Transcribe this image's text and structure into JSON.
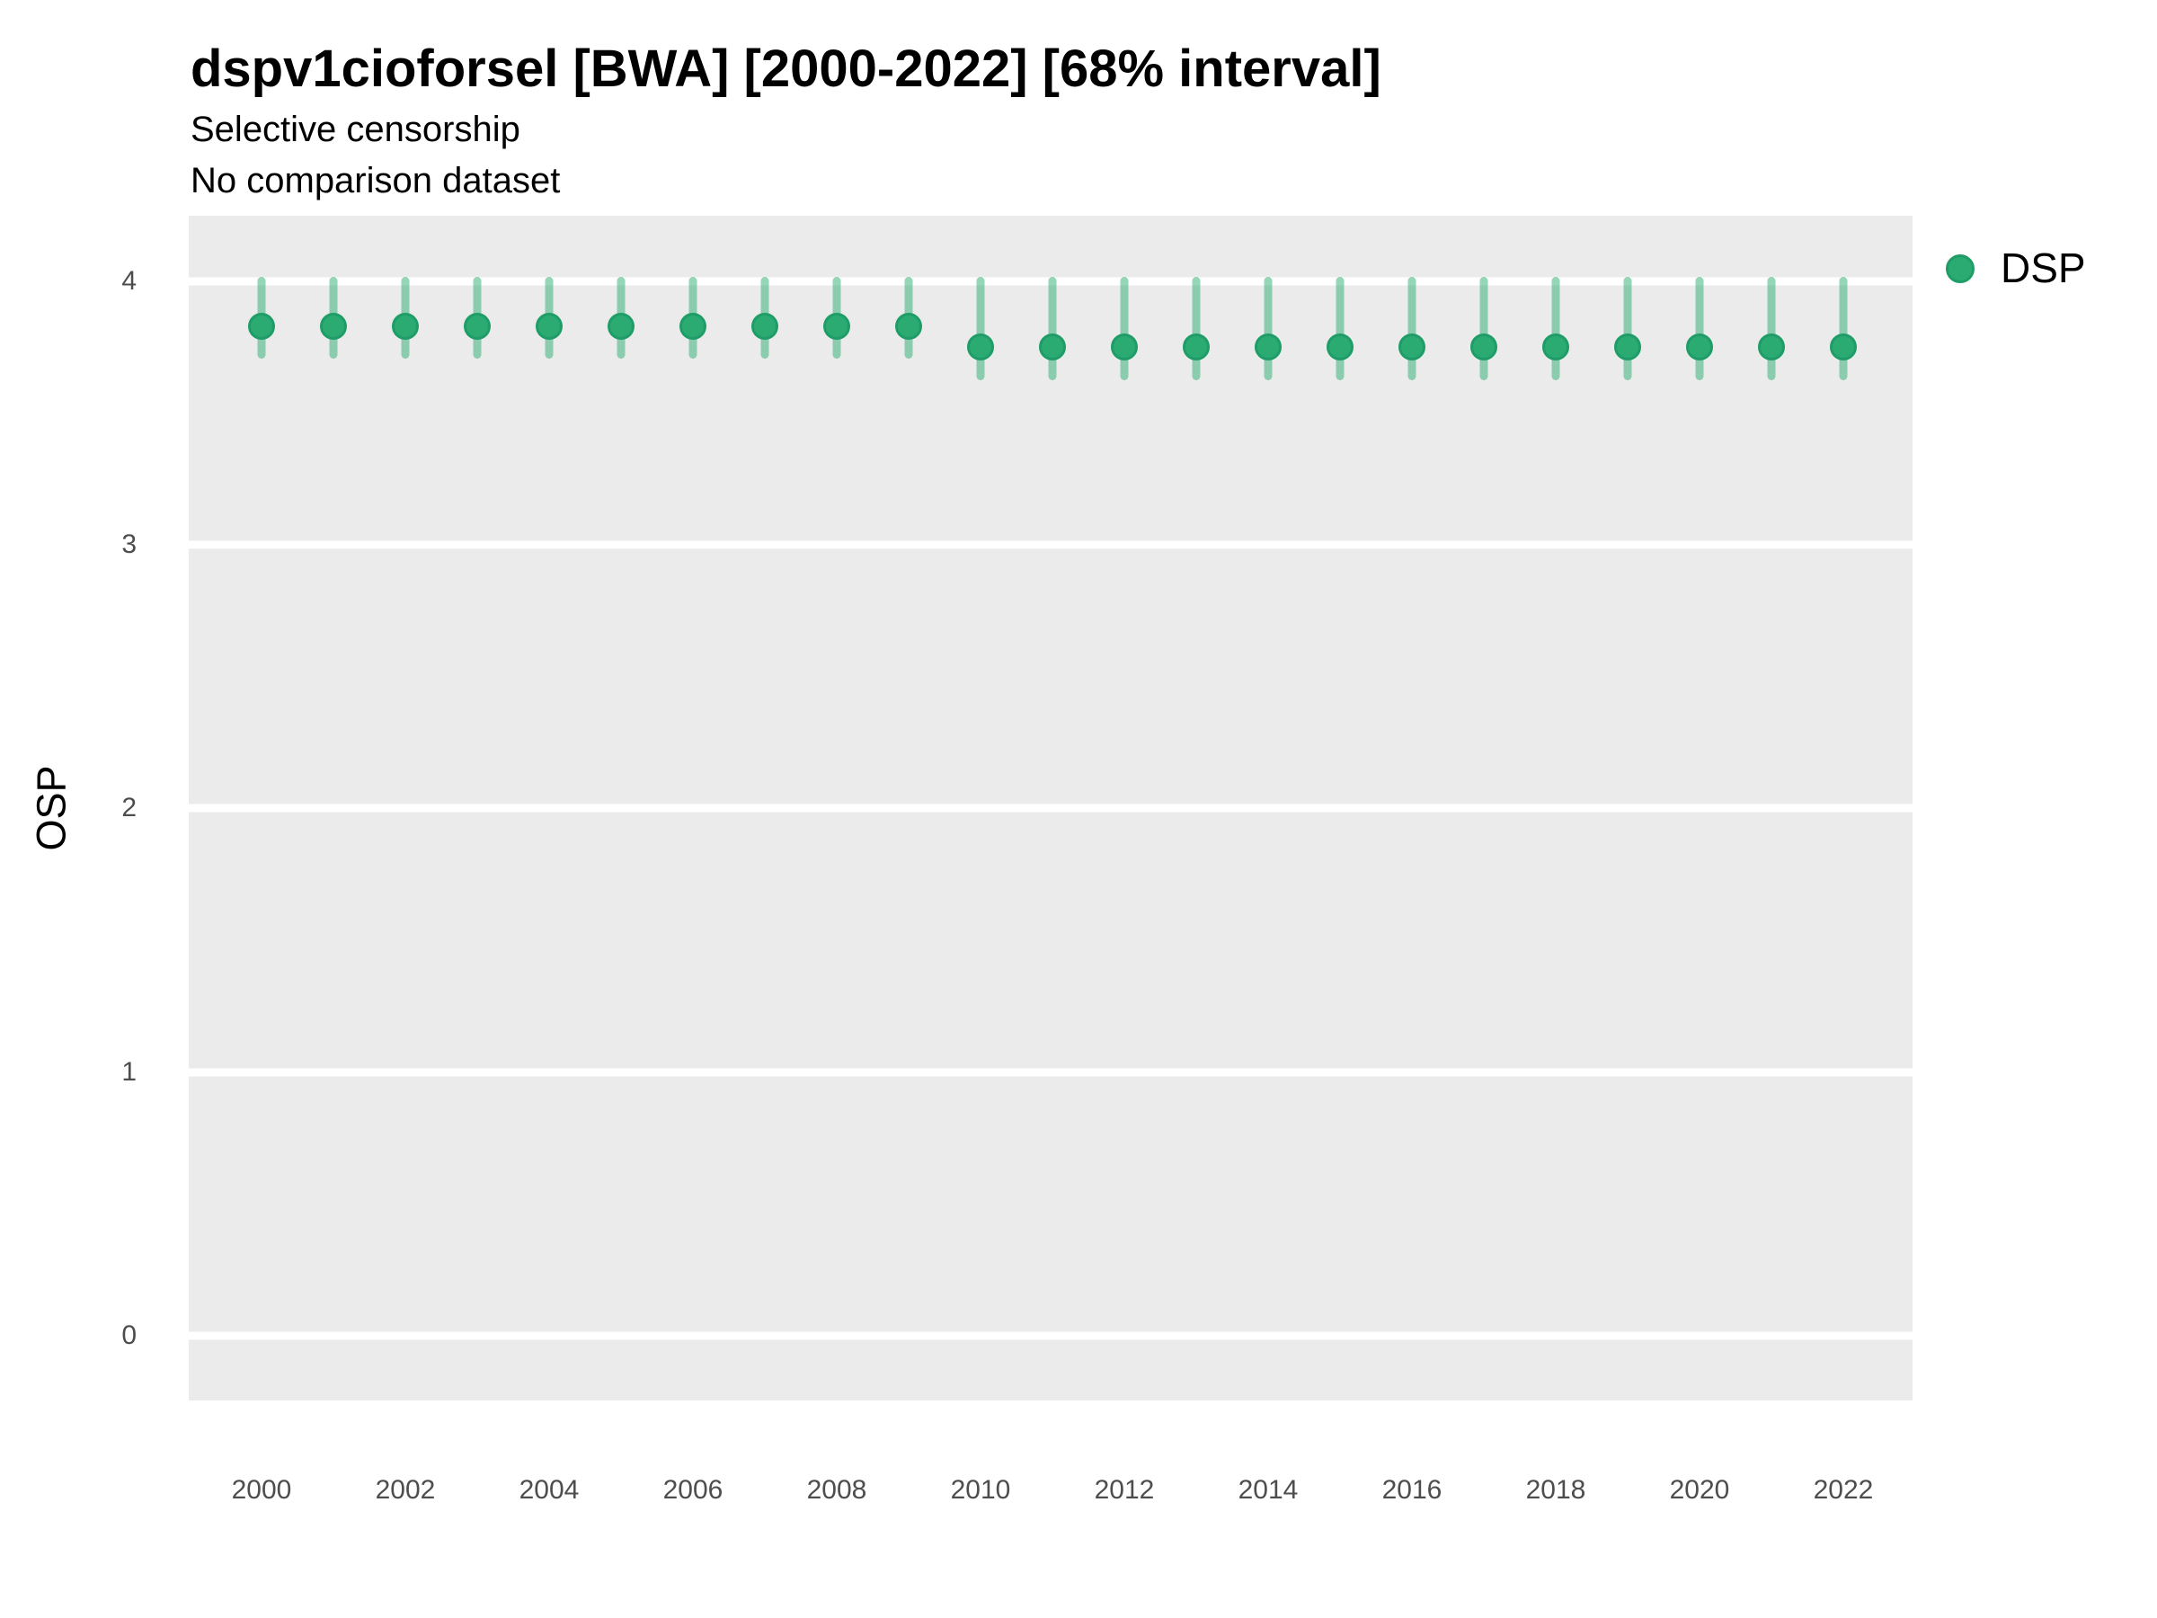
{
  "header": {
    "title": "dspv1cioforsel [BWA] [2000-2022] [68% interval]",
    "subtitle_line1": "Selective censorship",
    "subtitle_line2": "No comparison dataset"
  },
  "chart_data": {
    "type": "pointrange",
    "title": "dspv1cioforsel [BWA] [2000-2022] [68% interval]",
    "subtitle": [
      "Selective censorship",
      "No comparison dataset"
    ],
    "xlabel": "",
    "ylabel": "OSP",
    "x": [
      2000,
      2001,
      2002,
      2003,
      2004,
      2005,
      2006,
      2007,
      2008,
      2009,
      2010,
      2011,
      2012,
      2013,
      2014,
      2015,
      2016,
      2017,
      2018,
      2019,
      2020,
      2021,
      2022
    ],
    "series": [
      {
        "name": "DSP",
        "mid": [
          3.83,
          3.83,
          3.83,
          3.83,
          3.83,
          3.83,
          3.83,
          3.83,
          3.83,
          3.83,
          3.75,
          3.75,
          3.75,
          3.75,
          3.75,
          3.75,
          3.75,
          3.75,
          3.75,
          3.75,
          3.75,
          3.75,
          3.75
        ],
        "lo": [
          3.72,
          3.72,
          3.72,
          3.72,
          3.72,
          3.72,
          3.72,
          3.72,
          3.72,
          3.72,
          3.64,
          3.64,
          3.64,
          3.64,
          3.64,
          3.64,
          3.64,
          3.64,
          3.64,
          3.64,
          3.64,
          3.64,
          3.64
        ],
        "hi": [
          4.0,
          4.0,
          4.0,
          4.0,
          4.0,
          4.0,
          4.0,
          4.0,
          4.0,
          4.0,
          4.0,
          4.0,
          4.0,
          4.0,
          4.0,
          4.0,
          4.0,
          4.0,
          4.0,
          4.0,
          4.0,
          4.0,
          4.0
        ]
      }
    ],
    "interval_level": "68%",
    "x_ticks": [
      2000,
      2002,
      2004,
      2006,
      2008,
      2010,
      2012,
      2014,
      2016,
      2018,
      2020,
      2022
    ],
    "y_ticks": [
      0,
      1,
      2,
      3,
      4
    ],
    "ylim": [
      -0.245,
      4.248
    ],
    "grid": "horizontal-major-only",
    "legend": {
      "position": "right",
      "entries": [
        {
          "label": "DSP"
        }
      ]
    },
    "colors": {
      "point_fill": "#2BAB72",
      "point_border": "#1F9D68",
      "interval": "rgba(43,171,114,0.5)",
      "panel_background": "#EBEBEB",
      "gridline": "#FFFFFF",
      "tick_text": "#4D4D4D"
    }
  }
}
